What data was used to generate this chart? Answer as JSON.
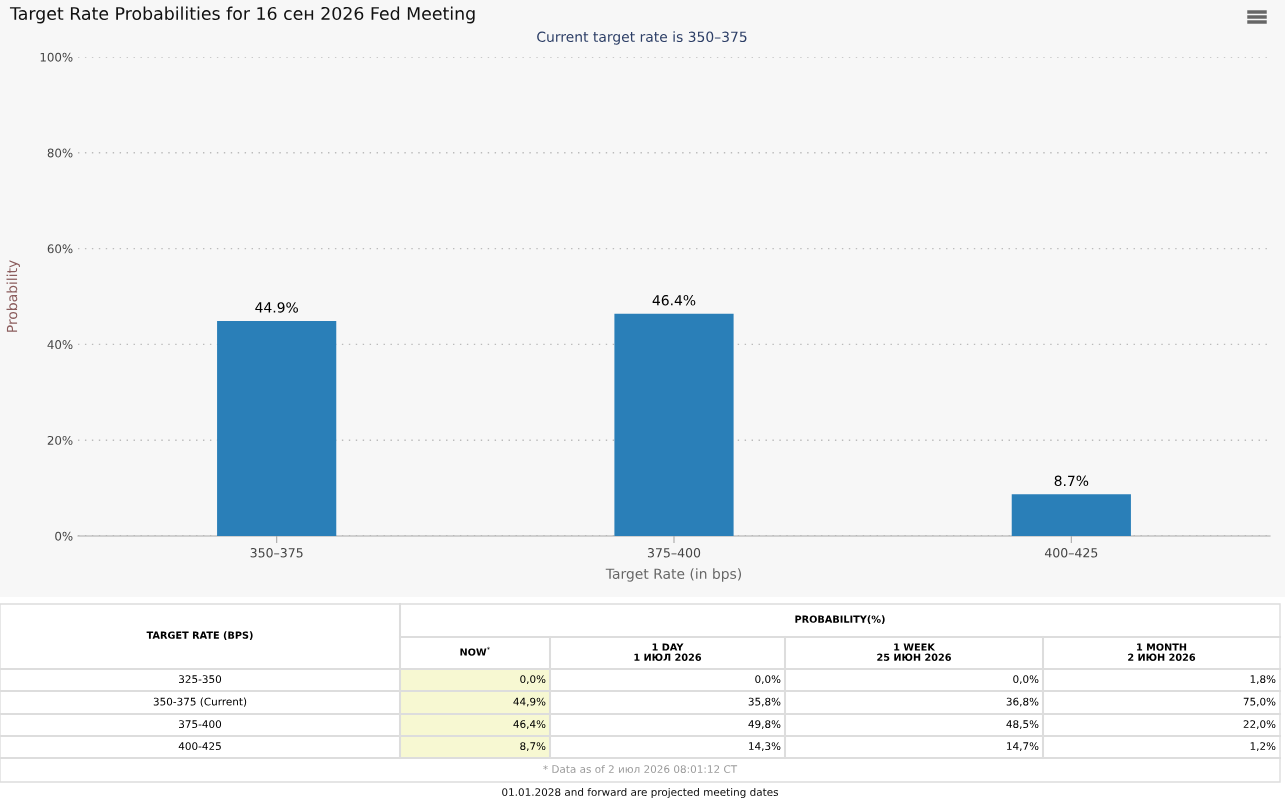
{
  "chart_data": [
    {
      "type": "bar",
      "title": "Target Rate Probabilities for 16 сен 2026 Fed Meeting",
      "subtitle": "Current target rate is 350–375",
      "xlabel": "Target Rate (in bps)",
      "ylabel": "Probability",
      "categories": [
        "350–375",
        "375–400",
        "400–425"
      ],
      "values": [
        44.9,
        46.4,
        8.7
      ],
      "value_labels": [
        "44.9%",
        "46.4%",
        "8.7%"
      ],
      "color": "#2a7fb8",
      "ylim": [
        0,
        100
      ],
      "yticks": [
        {
          "value": 0,
          "label": "0%"
        },
        {
          "value": 20,
          "label": "20%"
        },
        {
          "value": 40,
          "label": "40%"
        },
        {
          "value": 60,
          "label": "60%"
        },
        {
          "value": 80,
          "label": "80%"
        },
        {
          "value": 100,
          "label": "100%"
        }
      ],
      "grid": "y",
      "legend": false
    },
    {
      "type": "other",
      "title": "PROBABILITY(%)",
      "ylabel": "TARGET RATE (BPS)",
      "categories": [
        "NOW$^{*}$",
        "1 DAY\n1 ИЮЛ 2026",
        "1 WEEK\n25 ИЮН 2026",
        "1 MONTH\n2 ИЮН 2026"
      ],
      "y_categories": [
        "325-350",
        "350-375 (Current)",
        "375-400",
        "400-425"
      ],
      "cell_labels": [
        [
          "0,0%",
          "0,0%",
          "0,0%",
          "1,8%"
        ],
        [
          "44,9%",
          "35,8%",
          "36,8%",
          "75,0%"
        ],
        [
          "46,4%",
          "49,8%",
          "48,5%",
          "22,0%"
        ],
        [
          "8,7%",
          "14,3%",
          "14,7%",
          "1,2%"
        ]
      ],
      "colors": [
        "#f7f8d2",
        "#ffffff",
        "#ffffff",
        "#ffffff"
      ],
      "annotations": [
        "* Data as of 2 июл 2026 08:01:12 CT",
        "01.01.2028 and forward are projected meeting dates"
      ]
    }
  ]
}
